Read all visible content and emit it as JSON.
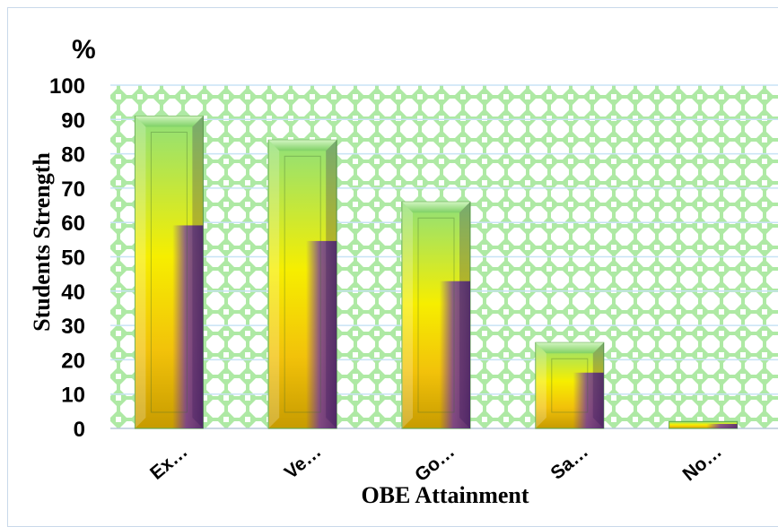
{
  "chart_data": {
    "type": "bar",
    "categories": [
      "Ex…",
      "Ve…",
      "Go…",
      "Sa…",
      "No…"
    ],
    "values": [
      91,
      84,
      66,
      25,
      2
    ],
    "ylabel": "Students Strength",
    "xlabel": "OBE Attainment",
    "y_unit": "%",
    "ylim": [
      0,
      100
    ],
    "yticks": [
      "0",
      "10",
      "20",
      "30",
      "40",
      "50",
      "60",
      "70",
      "80",
      "90",
      "100"
    ],
    "grid": true,
    "colors": {
      "bar_top": "#8fe07a",
      "bar_mid": "#f6ee00",
      "bar_shadow": "#6a2fa8",
      "plot_pattern": "#aee9a4",
      "plot_bg": "#ffffff"
    }
  }
}
